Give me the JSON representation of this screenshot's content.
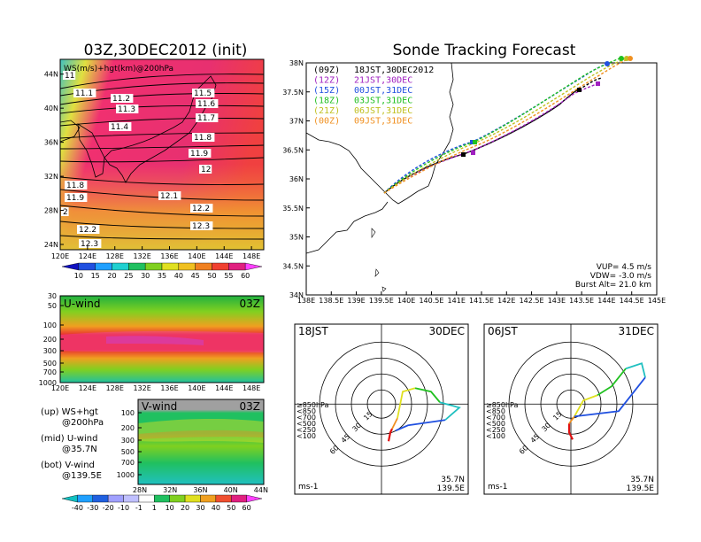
{
  "left_title": "03Z,30DEC2012 (init)",
  "right_title": "Sonde Tracking Forecast",
  "map_panel": {
    "label": "WS(m/s)+hgt(km)@200hPa",
    "xticks": [
      "120E",
      "124E",
      "128E",
      "132E",
      "136E",
      "140E",
      "144E",
      "148E"
    ],
    "yticks": [
      "24N",
      "28N",
      "32N",
      "36N",
      "40N",
      "44N"
    ],
    "contour_labels": [
      "11",
      "11.1",
      "11.2",
      "11.3",
      "11.4",
      "11.5",
      "11.6",
      "11.7",
      "11.8",
      "11.9",
      "12",
      "11.8",
      "11.9",
      "12.1",
      "12.2",
      "12.3",
      "12.2",
      "12.3",
      "2"
    ]
  },
  "ws_colorbar": {
    "ticks": [
      "10",
      "15",
      "20",
      "25",
      "30",
      "35",
      "40",
      "45",
      "50",
      "55",
      "60"
    ],
    "colors": [
      "#1010c0",
      "#2050e0",
      "#20a0ff",
      "#20d0d0",
      "#20c060",
      "#80d020",
      "#e0e020",
      "#f0c020",
      "#f08020",
      "#f04030",
      "#e02080",
      "#ff40ff"
    ]
  },
  "uwind": {
    "label": "U-wind",
    "time": "03Z",
    "yticks": [
      "30",
      "50",
      "100",
      "200",
      "300",
      "500",
      "700",
      "1000"
    ],
    "xticks": [
      "120E",
      "124E",
      "128E",
      "132E",
      "136E",
      "140E",
      "144E",
      "148E"
    ]
  },
  "vwind": {
    "label": "V-wind",
    "time": "03Z",
    "yticks": [
      "100",
      "200",
      "300",
      "500",
      "700",
      "1000"
    ],
    "xticks": [
      "28N",
      "32N",
      "36N",
      "40N",
      "44N"
    ]
  },
  "notes": [
    {
      "a": "(up) WS+hgt",
      "b": "@200hPa"
    },
    {
      "a": "(mid) U-wind",
      "b": "@35.7N"
    },
    {
      "a": "(bot) V-wind",
      "b": "@139.5E"
    }
  ],
  "wind_colorbar": {
    "ticks": [
      "-40",
      "-30",
      "-20",
      "-10",
      "-1",
      "1",
      "10",
      "20",
      "30",
      "40",
      "50",
      "60"
    ],
    "colors": [
      "#10c0c0",
      "#20a0ff",
      "#2060e0",
      "#a0a0ff",
      "#c0c0ff",
      "#ffffff",
      "#20c060",
      "#80d020",
      "#e0e020",
      "#f0a020",
      "#f05030",
      "#e02080",
      "#ff40ff"
    ]
  },
  "tracking": {
    "xticks": [
      "138E",
      "138.5E",
      "139E",
      "139.5E",
      "140E",
      "140.5E",
      "141E",
      "141.5E",
      "142E",
      "142.5E",
      "143E",
      "143.5E",
      "144E",
      "144.5E",
      "145E"
    ],
    "yticks": [
      "34N",
      "34.5N",
      "35N",
      "35.5N",
      "36N",
      "36.5N",
      "37N",
      "37.5N",
      "38N"
    ],
    "legend": [
      {
        "z": "(09Z)",
        "t": "18JST,30DEC2012",
        "color": "#000000"
      },
      {
        "z": "(12Z)",
        "t": "21JST,30DEC",
        "color": "#a020c0"
      },
      {
        "z": "(15Z)",
        "t": "00JST,31DEC",
        "color": "#2050e0"
      },
      {
        "z": "(18Z)",
        "t": "03JST,31DEC",
        "color": "#20c020"
      },
      {
        "z": "(21Z)",
        "t": "06JST,31DEC",
        "color": "#c0c020"
      },
      {
        "z": "(00Z)",
        "t": "09JST,31DEC",
        "color": "#f09020"
      }
    ],
    "stats": [
      "VUP= 4.5 m/s",
      "VDW= -3.0 m/s",
      "Burst Alt= 21.0 km"
    ]
  },
  "polar_left": {
    "tl": "18JST",
    "tr": "30DEC",
    "lat": "35.7N",
    "lon": "139.5E",
    "unit": "ms-1",
    "rings": [
      "15",
      "30",
      "45",
      "60"
    ]
  },
  "polar_right": {
    "tl": "06JST",
    "tr": "31DEC",
    "lat": "35.7N",
    "lon": "139.5E",
    "unit": "ms-1",
    "rings": [
      "15",
      "30",
      "45",
      "60"
    ]
  },
  "hodo_legend": [
    {
      "t": "≥850hPa",
      "color": "#e01010"
    },
    {
      "t": "<850",
      "color": "#f09020"
    },
    {
      "t": "<700",
      "color": "#e0e020"
    },
    {
      "t": "<500",
      "color": "#20c020"
    },
    {
      "t": "<250",
      "color": "#20c0c0"
    },
    {
      "t": "<100",
      "color": "#2050e0"
    }
  ]
}
